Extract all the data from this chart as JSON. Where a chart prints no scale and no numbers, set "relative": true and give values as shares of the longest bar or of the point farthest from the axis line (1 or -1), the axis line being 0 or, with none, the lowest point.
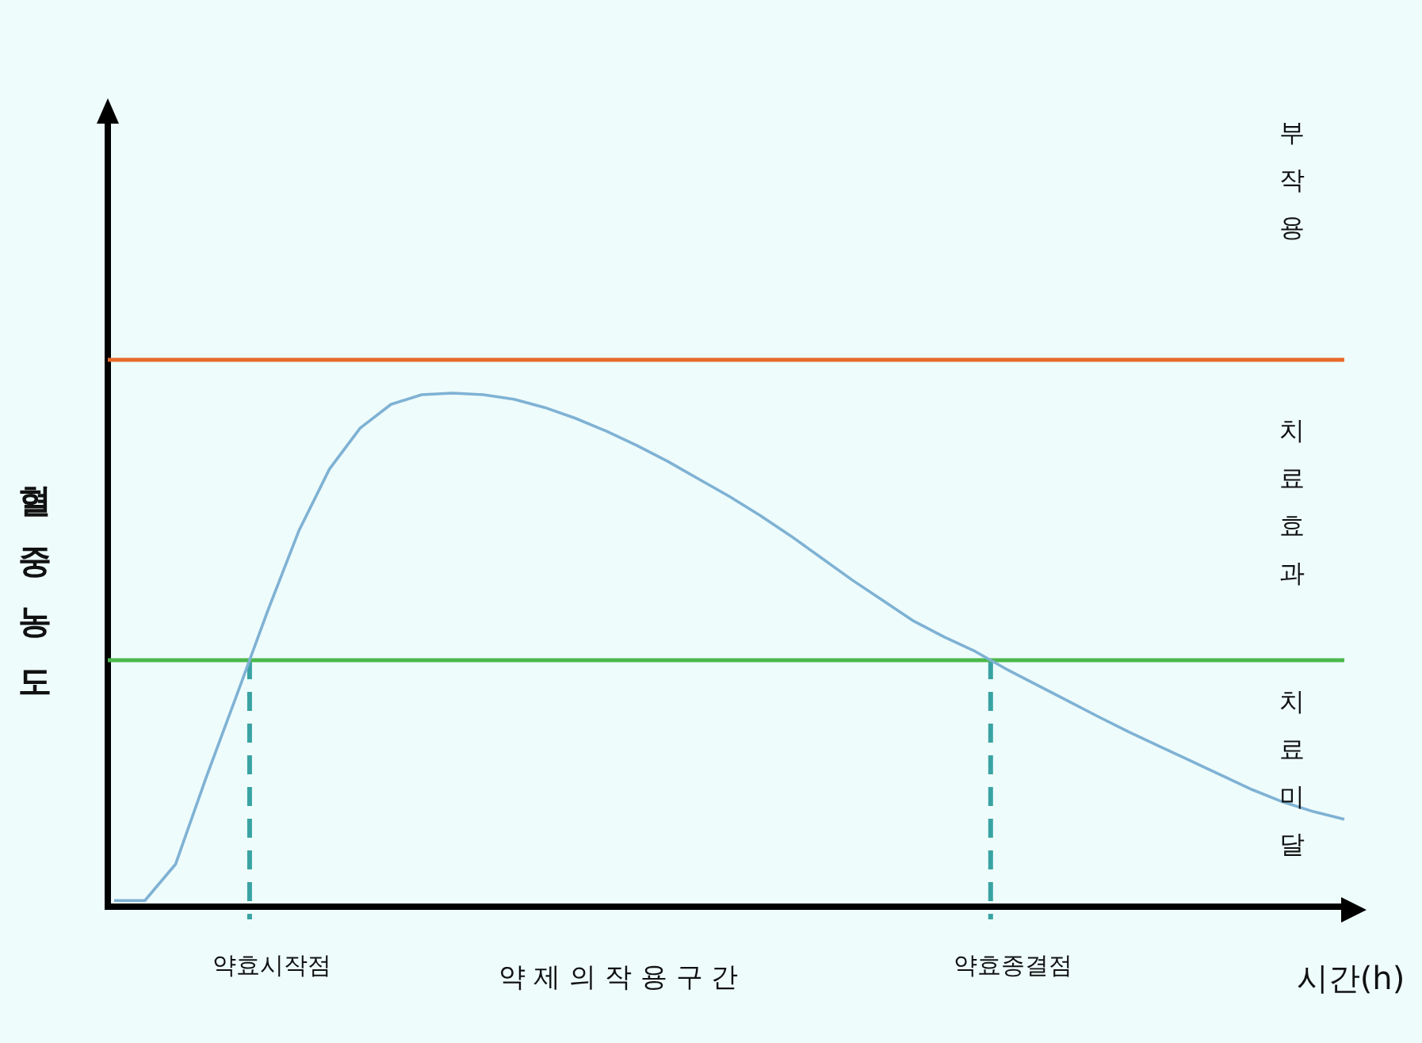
{
  "chart_data": {
    "type": "line",
    "relative": true,
    "xlabel": "시간(h)",
    "ylabel": "혈중농도",
    "categories": [
      null,
      null,
      null,
      null,
      null,
      null,
      null,
      null,
      null,
      null,
      null,
      null,
      null,
      null,
      null,
      null,
      null,
      null,
      null,
      null,
      null,
      null,
      null,
      null,
      null,
      null,
      null,
      null,
      null,
      null,
      null,
      null,
      null,
      null,
      null,
      null,
      null,
      null,
      null,
      null,
      null
    ],
    "series": [
      {
        "color": "#7fb2d4",
        "values": [
          0.012,
          0.012,
          0.083,
          0.253,
          0.414,
          0.577,
          0.731,
          0.852,
          0.932,
          0.978,
          0.997,
          1,
          0.997,
          0.988,
          0.972,
          0.951,
          0.926,
          0.898,
          0.867,
          0.833,
          0.799,
          0.762,
          0.722,
          0.679,
          0.636,
          0.596,
          0.556,
          0.525,
          0.497,
          0.463,
          0.432,
          0.401,
          0.37,
          0.34,
          0.312,
          0.284,
          0.256,
          0.228,
          0.204,
          0.185,
          0.17
        ]
      }
    ],
    "ref_lines": [
      {
        "axis": "y",
        "value": 1.065,
        "color": "#e8692a",
        "line_style": "solid"
      },
      {
        "axis": "y",
        "value": 0.48,
        "color": "#4cb84c",
        "line_style": "solid"
      }
    ],
    "annotations": [
      "약 제 의 작 용 구 간",
      "부작용",
      "치료효과",
      "치료미달",
      "약효시작점",
      "약효종결점"
    ]
  }
}
